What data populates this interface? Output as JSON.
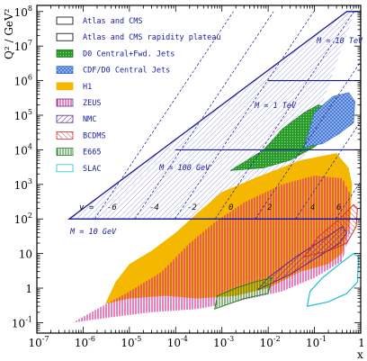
{
  "chart_data": {
    "type": "area",
    "xlabel": "x",
    "ylabel": "Q² / GeV²",
    "x_scale": "log",
    "y_scale": "log",
    "xlim": [
      1e-07,
      1
    ],
    "ylim": [
      0.05,
      150000000.0
    ],
    "x_ticks": [
      {
        "base": "10",
        "exp": "-7",
        "value": 1e-07
      },
      {
        "base": "10",
        "exp": "-6",
        "value": 1e-06
      },
      {
        "base": "10",
        "exp": "-5",
        "value": 1e-05
      },
      {
        "base": "10",
        "exp": "-4",
        "value": 0.0001
      },
      {
        "base": "10",
        "exp": "-3",
        "value": 0.001
      },
      {
        "base": "10",
        "exp": "-2",
        "value": 0.01
      },
      {
        "base": "10",
        "exp": "-1",
        "value": 0.1
      },
      {
        "base": "1",
        "exp": "",
        "value": 1
      }
    ],
    "y_ticks": [
      {
        "base": "10",
        "exp": "-1",
        "value": 0.1
      },
      {
        "base": "1",
        "exp": "",
        "value": 1
      },
      {
        "base": "10",
        "exp": "",
        "value": 10
      },
      {
        "base": "10",
        "exp": "2",
        "value": 100
      },
      {
        "base": "10",
        "exp": "3",
        "value": 1000
      },
      {
        "base": "10",
        "exp": "4",
        "value": 10000
      },
      {
        "base": "10",
        "exp": "5",
        "value": 100000
      },
      {
        "base": "10",
        "exp": "6",
        "value": 1000000
      },
      {
        "base": "10",
        "exp": "7",
        "value": 10000000
      },
      {
        "base": "10",
        "exp": "8",
        "value": 100000000
      }
    ],
    "legend_position": "top-left",
    "series": [
      {
        "name": "Atlas and CMS",
        "color": "#1a1aa0",
        "pattern": "outline",
        "region": [
          [
            5e-07,
            100
          ],
          [
            1,
            100
          ],
          [
            1,
            100000000.0
          ],
          [
            0.5,
            100000000.0
          ]
        ]
      },
      {
        "name": "Atlas and CMS rapidity plateau",
        "color": "#5a5ad0",
        "pattern": "diagonal",
        "region": [
          [
            5e-07,
            100
          ],
          [
            0.02,
            100
          ],
          [
            1,
            300000000.0
          ],
          [
            0.5,
            100000000.0
          ]
        ]
      },
      {
        "name": "D0 Central+Fwd. Jets",
        "color": "#2a9a2a",
        "pattern": "solid",
        "region": [
          [
            0.0015,
            2500
          ],
          [
            0.008,
            3000
          ],
          [
            0.03,
            5000
          ],
          [
            0.1,
            12000
          ],
          [
            0.2,
            25000
          ],
          [
            0.3,
            80000
          ],
          [
            0.25,
            150000
          ],
          [
            0.12,
            200000
          ],
          [
            0.06,
            120000
          ],
          [
            0.02,
            40000
          ],
          [
            0.008,
            10000
          ]
        ]
      },
      {
        "name": "CDF/D0 Central Jets",
        "color": "#3a6ad0",
        "pattern": "crosshatch",
        "region": [
          [
            0.06,
            12000
          ],
          [
            0.15,
            15000
          ],
          [
            0.35,
            30000
          ],
          [
            0.7,
            60000
          ],
          [
            0.75,
            250000
          ],
          [
            0.55,
            450000
          ],
          [
            0.25,
            350000
          ],
          [
            0.1,
            120000
          ]
        ]
      },
      {
        "name": "H1",
        "color": "#f5b800",
        "pattern": "solid",
        "region": [
          [
            3e-06,
            0.35
          ],
          [
            1e-05,
            0.5
          ],
          [
            6e-05,
            0.6
          ],
          [
            0.0003,
            0.5
          ],
          [
            0.002,
            0.6
          ],
          [
            0.01,
            1
          ],
          [
            0.05,
            3
          ],
          [
            0.2,
            5
          ],
          [
            0.4,
            10
          ],
          [
            0.6,
            100
          ],
          [
            0.65,
            1000
          ],
          [
            0.55,
            3000
          ],
          [
            0.3,
            8000
          ],
          [
            0.05,
            5000
          ],
          [
            0.005,
            1500
          ],
          [
            0.001,
            600
          ],
          [
            0.0003,
            150
          ],
          [
            0.0001,
            40
          ],
          [
            3e-05,
            12
          ],
          [
            1e-05,
            5
          ],
          [
            5e-06,
            1.5
          ]
        ]
      },
      {
        "name": "ZEUS",
        "color": "#e0188f",
        "pattern": "vertical",
        "region": [
          [
            6e-07,
            0.1
          ],
          [
            5e-06,
            0.15
          ],
          [
            3e-05,
            0.2
          ],
          [
            0.0003,
            0.25
          ],
          [
            0.002,
            0.4
          ],
          [
            0.02,
            0.8
          ],
          [
            0.1,
            2
          ],
          [
            0.4,
            6
          ],
          [
            0.6,
            50
          ],
          [
            0.6,
            500
          ],
          [
            0.4,
            1500
          ],
          [
            0.1,
            1800
          ],
          [
            0.02,
            1000
          ],
          [
            0.003,
            300
          ],
          [
            0.0007,
            80
          ],
          [
            0.0002,
            20
          ],
          [
            5e-05,
            3
          ],
          [
            1e-05,
            0.8
          ],
          [
            2e-06,
            0.25
          ]
        ]
      },
      {
        "name": "NMC",
        "color": "#5a2a90",
        "pattern": "diagonal",
        "region": [
          [
            0.006,
            0.9
          ],
          [
            0.03,
            2.5
          ],
          [
            0.12,
            8
          ],
          [
            0.35,
            20
          ],
          [
            0.5,
            40
          ],
          [
            0.4,
            60
          ],
          [
            0.15,
            25
          ],
          [
            0.04,
            8
          ],
          [
            0.01,
            2
          ]
        ]
      },
      {
        "name": "BCDMS",
        "color": "#d03030",
        "pattern": "diagonal",
        "region": [
          [
            0.06,
            8
          ],
          [
            0.2,
            12
          ],
          [
            0.5,
            20
          ],
          [
            0.8,
            60
          ],
          [
            0.85,
            200
          ],
          [
            0.7,
            260
          ],
          [
            0.35,
            100
          ],
          [
            0.12,
            30
          ]
        ]
      },
      {
        "name": "E665",
        "color": "#208020",
        "pattern": "vertical",
        "region": [
          [
            0.0007,
            0.25
          ],
          [
            0.003,
            0.5
          ],
          [
            0.01,
            0.7
          ],
          [
            0.012,
            2
          ],
          [
            0.005,
            1.5
          ],
          [
            0.002,
            1
          ],
          [
            0.0008,
            0.6
          ]
        ]
      },
      {
        "name": "SLAC",
        "color": "#20c0d0",
        "pattern": "outline",
        "region": [
          [
            0.07,
            0.3
          ],
          [
            0.2,
            0.4
          ],
          [
            0.5,
            0.7
          ],
          [
            0.85,
            1.5
          ],
          [
            0.9,
            8
          ],
          [
            0.7,
            10
          ],
          [
            0.35,
            5
          ],
          [
            0.15,
            2
          ],
          [
            0.08,
            0.8
          ]
        ]
      }
    ],
    "mass_lines": [
      {
        "label": "M = 10 GeV",
        "q2": 100
      },
      {
        "label": "M = 100 GeV",
        "q2": 10000
      },
      {
        "label": "M = 1 TeV",
        "q2": 1000000
      },
      {
        "label": "M = 10 TeV",
        "q2": 100000000
      }
    ],
    "rapidity_labels": [
      {
        "label": "y =",
        "value": ""
      },
      {
        "label": "-6",
        "value": -6
      },
      {
        "label": "-4",
        "value": -4
      },
      {
        "label": "-2",
        "value": -2
      },
      {
        "label": "0",
        "value": 0
      },
      {
        "label": "2",
        "value": 2
      },
      {
        "label": "4",
        "value": 4
      },
      {
        "label": "6",
        "value": 6
      }
    ]
  }
}
